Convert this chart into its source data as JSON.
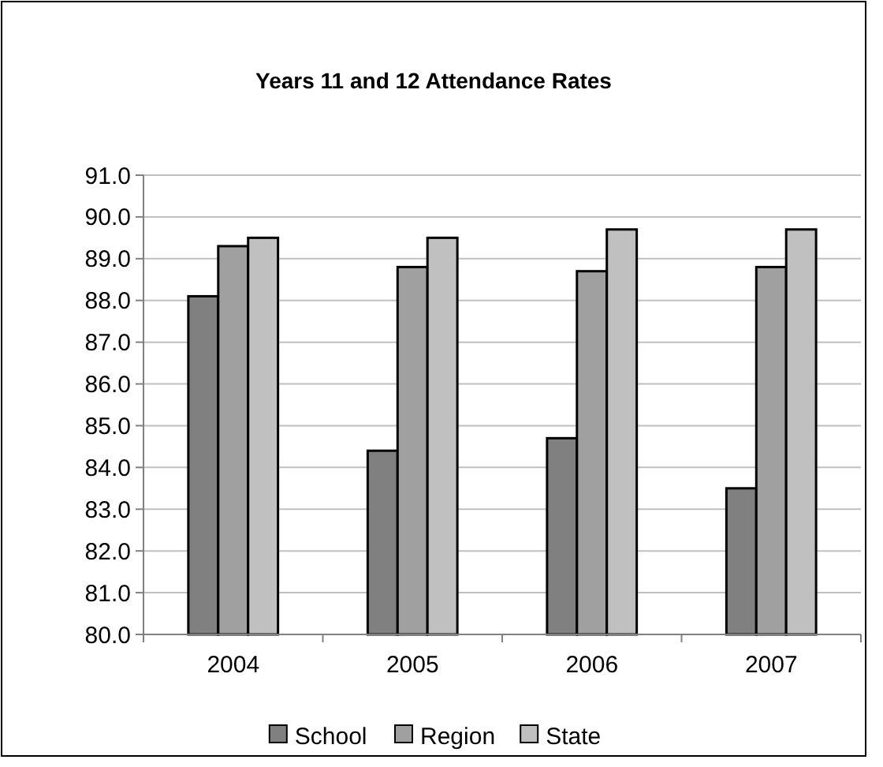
{
  "chart_data": {
    "type": "bar",
    "title": "Years 11 and 12 Attendance Rates",
    "categories": [
      "2004",
      "2005",
      "2006",
      "2007"
    ],
    "series": [
      {
        "name": "School",
        "color": "#808080",
        "values": [
          88.1,
          84.4,
          84.7,
          83.5
        ]
      },
      {
        "name": "Region",
        "color": "#a0a0a0",
        "values": [
          89.3,
          88.8,
          88.7,
          88.8
        ]
      },
      {
        "name": "State",
        "color": "#c0c0c0",
        "values": [
          89.5,
          89.5,
          89.7,
          89.7
        ]
      }
    ],
    "ylim": [
      80,
      91
    ],
    "yticks": [
      {
        "value": 80,
        "label": "80.0"
      },
      {
        "value": 81,
        "label": "81.0"
      },
      {
        "value": 82,
        "label": "82.0"
      },
      {
        "value": 83,
        "label": "83.0"
      },
      {
        "value": 84,
        "label": "84.0"
      },
      {
        "value": 85,
        "label": "85.0"
      },
      {
        "value": 86,
        "label": "86.0"
      },
      {
        "value": 87,
        "label": "87.0"
      },
      {
        "value": 88,
        "label": "88.0"
      },
      {
        "value": 89,
        "label": "89.0"
      },
      {
        "value": 90,
        "label": "90.0"
      },
      {
        "value": 91,
        "label": "91.0"
      }
    ],
    "grid": "y",
    "legend": "bottom"
  }
}
